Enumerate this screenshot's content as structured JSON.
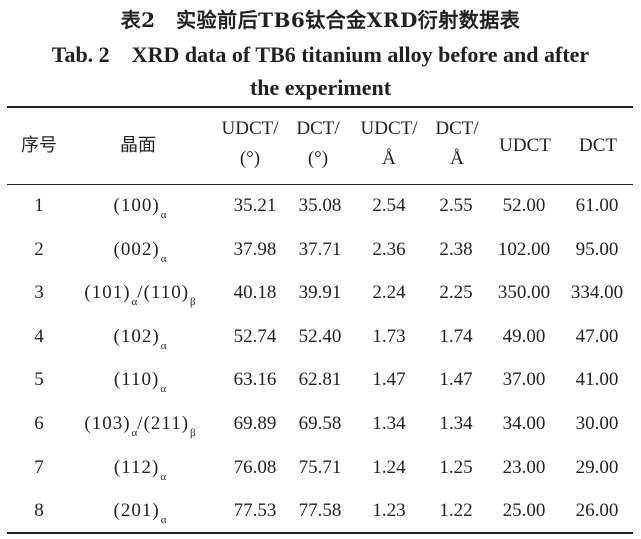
{
  "title_cn": "表2　实验前后TB6钛合金XRD衍射数据表",
  "title_en_line1": "Tab. 2　XRD data of TB6 titanium alloy before and after",
  "title_en_line2": "the experiment",
  "headers": {
    "no": "序号",
    "plane": "晶面",
    "udct_angle_1": "UDCT/",
    "udct_angle_2": "(°)",
    "dct_angle_1": "DCT/",
    "dct_angle_2": "(°)",
    "udct_d_1": "UDCT/",
    "udct_d_2": "Å",
    "dct_d_1": "DCT/",
    "dct_d_2": "Å",
    "udct": "UDCT",
    "dct": "DCT"
  },
  "rows": [
    {
      "no": "1",
      "p1": "(100)",
      "s1": "α",
      "p2": "",
      "s2": "",
      "a1": "35.21",
      "a2": "35.08",
      "d1": "2.54",
      "d2": "2.55",
      "i1": "52.00",
      "i2": "61.00"
    },
    {
      "no": "2",
      "p1": "(002)",
      "s1": "α",
      "p2": "",
      "s2": "",
      "a1": "37.98",
      "a2": "37.71",
      "d1": "2.36",
      "d2": "2.38",
      "i1": "102.00",
      "i2": "95.00"
    },
    {
      "no": "3",
      "p1": "(101)",
      "s1": "α",
      "p2": "/(110)",
      "s2": "β",
      "a1": "40.18",
      "a2": "39.91",
      "d1": "2.24",
      "d2": "2.25",
      "i1": "350.00",
      "i2": "334.00"
    },
    {
      "no": "4",
      "p1": "(102)",
      "s1": "α",
      "p2": "",
      "s2": "",
      "a1": "52.74",
      "a2": "52.40",
      "d1": "1.73",
      "d2": "1.74",
      "i1": "49.00",
      "i2": "47.00"
    },
    {
      "no": "5",
      "p1": "(110)",
      "s1": "α",
      "p2": "",
      "s2": "",
      "a1": "63.16",
      "a2": "62.81",
      "d1": "1.47",
      "d2": "1.47",
      "i1": "37.00",
      "i2": "41.00"
    },
    {
      "no": "6",
      "p1": "(103)",
      "s1": "α",
      "p2": "/(211)",
      "s2": "β",
      "a1": "69.89",
      "a2": "69.58",
      "d1": "1.34",
      "d2": "1.34",
      "i1": "34.00",
      "i2": "30.00"
    },
    {
      "no": "7",
      "p1": "(112)",
      "s1": "α",
      "p2": "",
      "s2": "",
      "a1": "76.08",
      "a2": "75.71",
      "d1": "1.24",
      "d2": "1.25",
      "i1": "23.00",
      "i2": "29.00"
    },
    {
      "no": "8",
      "p1": "(201)",
      "s1": "α",
      "p2": "",
      "s2": "",
      "a1": "77.53",
      "a2": "77.58",
      "d1": "1.23",
      "d2": "1.22",
      "i1": "25.00",
      "i2": "26.00"
    }
  ]
}
